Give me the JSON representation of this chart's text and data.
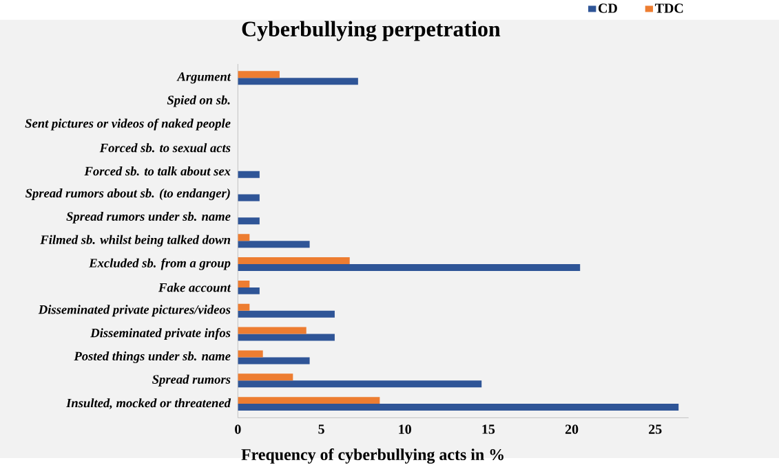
{
  "chart_data": {
    "type": "bar",
    "orientation": "horizontal",
    "title": "Cyberbullying perpetration",
    "xlabel": "Frequency of cyberbullying acts in %",
    "categories": [
      "Argument",
      "Spied on sb.",
      "Sent pictures or videos of naked people",
      "Forced sb. to sexual acts",
      "Forced sb. to talk about sex",
      "Spread rumors about sb. (to endanger)",
      "Spread rumors under sb. name",
      "Filmed sb. whilst being talked down",
      "Excluded sb. from a group",
      "Fake account",
      "Disseminated private pictures/videos",
      "Disseminated private infos",
      "Posted things under sb. name",
      "Spread rumors",
      "Insulted, mocked or threatened"
    ],
    "series": [
      {
        "name": "CD",
        "color": "#2f5597",
        "values": [
          7.2,
          0,
          0,
          0,
          1.3,
          1.3,
          1.3,
          4.3,
          20.5,
          1.3,
          5.8,
          5.8,
          4.3,
          14.6,
          26.4
        ]
      },
      {
        "name": "TDC",
        "color": "#ed7d31",
        "values": [
          2.5,
          0,
          0,
          0,
          0,
          0,
          0,
          0.7,
          6.7,
          0.7,
          0.7,
          4.1,
          1.5,
          3.3,
          8.5
        ]
      }
    ],
    "xlim": [
      0,
      27
    ],
    "xticks": [
      0,
      5,
      10,
      15,
      20,
      25
    ],
    "grid": false,
    "legend": "top right"
  }
}
